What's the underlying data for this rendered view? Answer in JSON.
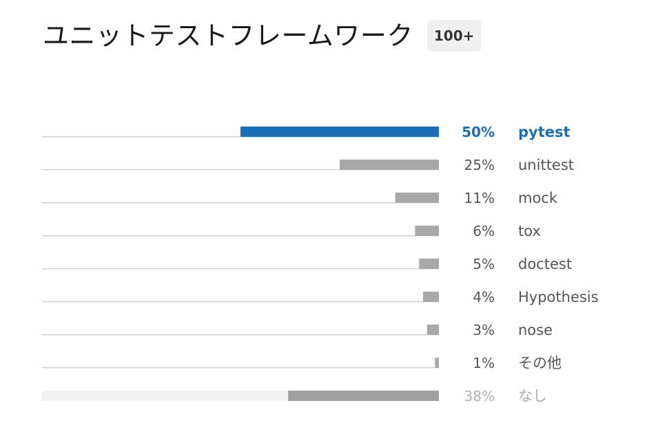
{
  "header": {
    "title": "ユニットテストフレームワーク",
    "badge": "100+"
  },
  "colors": {
    "highlight": "#1a6fb8",
    "bar": "#a8a8a8",
    "none_bar": "#a0a0a0",
    "none_track": "#f2f2f2",
    "track": "#d0d0d0",
    "label": "#555555",
    "muted_label": "#b0b0b0"
  },
  "chart_data": {
    "type": "bar",
    "orientation": "horizontal",
    "value_unit": "%",
    "xlim": [
      0,
      100
    ],
    "categories": [
      "pytest",
      "unittest",
      "mock",
      "tox",
      "doctest",
      "Hypothesis",
      "nose",
      "その他",
      "なし"
    ],
    "values": [
      50,
      25,
      11,
      6,
      5,
      4,
      3,
      1,
      38
    ],
    "value_labels": [
      "50%",
      "25%",
      "11%",
      "6%",
      "5%",
      "4%",
      "3%",
      "1%",
      "38%"
    ],
    "highlight": "pytest",
    "muted": "なし",
    "grid": false,
    "legend": "none"
  }
}
